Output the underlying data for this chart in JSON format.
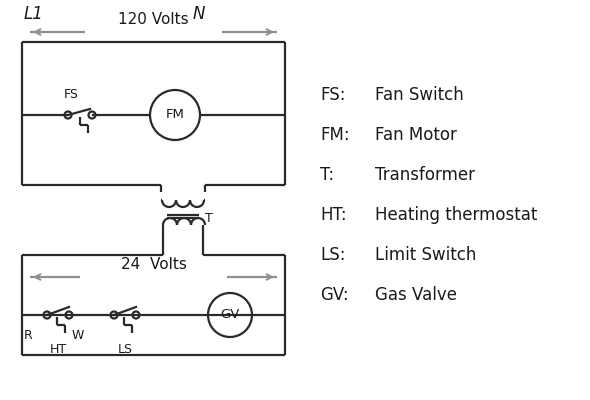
{
  "bg_color": "#ffffff",
  "line_color": "#2a2a2a",
  "gray_color": "#909090",
  "text_color": "#1a1a1a",
  "legend": [
    [
      "FS:",
      "Fan Switch"
    ],
    [
      "FM:",
      "Fan Motor"
    ],
    [
      "T:",
      "Transformer"
    ],
    [
      "HT:",
      "Heating thermostat"
    ],
    [
      "LS:",
      "Limit Switch"
    ],
    [
      "GV:",
      "Gas Valve"
    ]
  ],
  "L1_label": "L1",
  "N_label": "N",
  "volts120": "120 Volts",
  "volts24": "24  Volts",
  "T_label": "T",
  "FS_label": "FS",
  "FM_label": "FM",
  "R_label": "R",
  "W_label": "W",
  "HT_label": "HT",
  "LS_label": "LS",
  "GV_label": "GV"
}
